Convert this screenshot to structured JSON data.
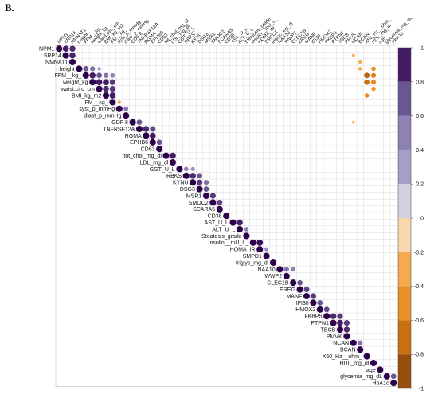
{
  "figure": {
    "panel_label": "B."
  },
  "chart_data": {
    "type": "heatmap",
    "subtype": "correlation-matrix-upper-circles",
    "variables": [
      "NPM1",
      "SRP14",
      "NMNAT1",
      "height",
      "FFM__kg_",
      "weight_kg",
      "waist.circ_cm",
      "BMI_kg_m2",
      "FM__kg_",
      "syst_p_mmHg",
      "diast_p_mmHg",
      "GDF 8",
      "TNFRSF12A",
      "RGMA",
      "EPHB6",
      "CD63",
      "tot_chol_mg_dl",
      "LDL_mg_dl",
      "GGT_U_L",
      "RBKS",
      "KYNU",
      "DSG3",
      "MSR1",
      "SMOC2",
      "SCARA5",
      "CD38",
      "AST_U_L",
      "ALT_U_L",
      "Steatosis_grade",
      "insulin__mU_L_",
      "HOMA_IR",
      "SMPD1",
      "triglyc_mg_dl",
      "NAA10",
      "WWP2",
      "CLEC1B",
      "EREG",
      "MANF",
      "IFI30",
      "HMOX2",
      "FKBP5",
      "PTPN1",
      "TBCB",
      "PMVK",
      "NCAN",
      "BCAN",
      "X50_Hz__ohm_",
      "HDL_mg_dl",
      "age",
      "glycemia_mg_dL",
      "HbA1c"
    ],
    "colorbar": {
      "ticks": [
        "1",
        "0.8",
        "0.6",
        "0.4",
        "0.2",
        "0",
        "-0.2",
        "-0.4",
        "-0.6",
        "-0.8",
        "-1"
      ],
      "range": [
        -1,
        1
      ]
    },
    "colors": {
      "positive_strong": "#2d004b",
      "positive_mid": "#8073ac",
      "neutral": "#f7f7f7",
      "negative_mid": "#f1a340",
      "negative_strong": "#7f3b08",
      "grid": "#d9d9d9"
    },
    "correlations": [
      [
        "NPM1",
        "SRP14",
        0.9
      ],
      [
        "NPM1",
        "NMNAT1",
        0.85
      ],
      [
        "SRP14",
        "NMNAT1",
        0.88
      ],
      [
        "height",
        "FFM__kg_",
        0.7
      ],
      [
        "height",
        "weight_kg",
        0.6
      ],
      [
        "height",
        "waist.circ_cm",
        0.3
      ],
      [
        "FFM__kg_",
        "weight_kg",
        0.9
      ],
      [
        "FFM__kg_",
        "waist.circ_cm",
        0.7
      ],
      [
        "FFM__kg_",
        "BMI_kg_m2",
        0.6
      ],
      [
        "FFM__kg_",
        "FM__kg_",
        0.5
      ],
      [
        "weight_kg",
        "waist.circ_cm",
        0.9
      ],
      [
        "weight_kg",
        "BMI_kg_m2",
        0.9
      ],
      [
        "weight_kg",
        "FM__kg_",
        0.8
      ],
      [
        "waist.circ_cm",
        "BMI_kg_m2",
        0.85
      ],
      [
        "waist.circ_cm",
        "FM__kg_",
        0.8
      ],
      [
        "BMI_kg_m2",
        "FM__kg_",
        0.9
      ],
      [
        "syst_p_mmHg",
        "diast_p_mmHg",
        0.55
      ],
      [
        "GDF 8",
        "TNFRSF12A",
        0.7
      ],
      [
        "TNFRSF12A",
        "RGMA",
        0.85
      ],
      [
        "TNFRSF12A",
        "EPHB6",
        0.75
      ],
      [
        "RGMA",
        "EPHB6",
        0.9
      ],
      [
        "EPHB6",
        "CD63",
        0.7
      ],
      [
        "tot_chol_mg_dl",
        "LDL_mg_dl",
        0.9
      ],
      [
        "GGT_U_L",
        "RBKS",
        0.5
      ],
      [
        "GGT_U_L",
        "KYNU",
        0.4
      ],
      [
        "RBKS",
        "KYNU",
        0.85
      ],
      [
        "RBKS",
        "DSG3",
        0.7
      ],
      [
        "KYNU",
        "DSG3",
        0.8
      ],
      [
        "KYNU",
        "MSR1",
        0.6
      ],
      [
        "DSG3",
        "MSR1",
        0.7
      ],
      [
        "MSR1",
        "SMOC2",
        0.8
      ],
      [
        "SMOC2",
        "SCARA5",
        0.75
      ],
      [
        "AST_U_L",
        "ALT_U_L",
        0.9
      ],
      [
        "ALT_U_L",
        "Steatosis_grade",
        0.5
      ],
      [
        "insulin__mU_L_",
        "HOMA_IR",
        0.95
      ],
      [
        "HOMA_IR",
        "SMPD1",
        0.4
      ],
      [
        "NAA10",
        "WWP2",
        0.6
      ],
      [
        "NAA10",
        "CLEC1B",
        0.5
      ],
      [
        "CLEC1B",
        "EREG",
        0.7
      ],
      [
        "EREG",
        "MANF",
        0.75
      ],
      [
        "MANF",
        "IFI30",
        0.8
      ],
      [
        "IFI30",
        "HMOX2",
        0.7
      ],
      [
        "HMOX2",
        "FKBP5",
        0.75
      ],
      [
        "FKBP5",
        "PTPN1",
        0.85
      ],
      [
        "FKBP5",
        "TBCB",
        0.8
      ],
      [
        "PTPN1",
        "TBCB",
        0.9
      ],
      [
        "PTPN1",
        "PMVK",
        0.8
      ],
      [
        "TBCB",
        "PMVK",
        0.85
      ],
      [
        "NCAN",
        "BCAN",
        0.6
      ],
      [
        "glycemia_mg_dL",
        "HbA1c",
        0.7
      ],
      [
        "height",
        "HDL_mg_dl",
        -0.5
      ],
      [
        "FFM__kg_",
        "HDL_mg_dl",
        -0.6
      ],
      [
        "weight_kg",
        "HDL_mg_dl",
        -0.55
      ],
      [
        "weight_kg",
        "X50_Hz__ohm_",
        -0.7
      ],
      [
        "FFM__kg_",
        "X50_Hz__ohm_",
        -0.75
      ],
      [
        "waist.circ_cm",
        "HDL_mg_dl",
        -0.45
      ],
      [
        "BMI_kg_m2",
        "X50_Hz__ohm_",
        -0.5
      ],
      [
        "height",
        "BCAN",
        -0.3
      ],
      [
        "NMNAT1",
        "BCAN",
        -0.3
      ],
      [
        "SRP14",
        "NCAN",
        -0.25
      ],
      [
        "FM__kg_",
        "syst_p_mmHg",
        -0.3
      ],
      [
        "GDF 8",
        "NCAN",
        -0.2
      ]
    ]
  }
}
